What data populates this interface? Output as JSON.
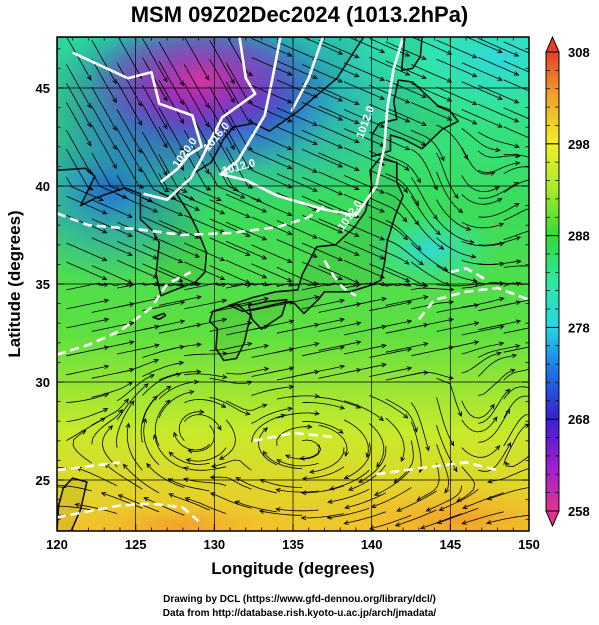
{
  "title": "MSM 09Z02Dec2024 (1013.2hPa)",
  "x_axis": {
    "label": "Longitude (degrees)",
    "ticks": [
      "120",
      "125",
      "130",
      "135",
      "140",
      "145",
      "150"
    ],
    "range": [
      120,
      150
    ]
  },
  "y_axis": {
    "label": "Latitude  (degrees)",
    "ticks": [
      "25",
      "30",
      "35",
      "40",
      "45"
    ],
    "range": [
      22.4,
      47.6
    ]
  },
  "colorbar": {
    "ticks": [
      "308",
      "298",
      "288",
      "278",
      "268",
      "258"
    ],
    "range": [
      258,
      308
    ],
    "colors": [
      "#e0338f",
      "#9b1fd0",
      "#3a1fd0",
      "#1e6fe6",
      "#28d4e6",
      "#2ee8a0",
      "#36d83a",
      "#a6ec2a",
      "#f2ee2a",
      "#f2a62a",
      "#e6402a"
    ]
  },
  "contour_labels": [
    {
      "text": "1020.0",
      "lon": 128.3,
      "lat": 41.6,
      "angle": -55
    },
    {
      "text": "1016.0",
      "lon": 130.3,
      "lat": 42.4,
      "angle": -50
    },
    {
      "text": "1012.0",
      "lon": 131.6,
      "lat": 40.8,
      "angle": -15
    },
    {
      "text": "1012.0",
      "lon": 139.8,
      "lat": 43.2,
      "angle": -70
    },
    {
      "text": "1012.0",
      "lon": 138.8,
      "lat": 38.4,
      "angle": -55
    }
  ],
  "contours": [
    [
      [
        121.0,
        46.8
      ],
      [
        124.5,
        45.5
      ],
      [
        126.0,
        45.8
      ],
      [
        126.5,
        44.2
      ],
      [
        128.6,
        43.6
      ],
      [
        129.2,
        42.0
      ],
      [
        128.4,
        41.6
      ],
      [
        127.7,
        40.9
      ],
      [
        126.6,
        40.2
      ]
    ],
    [
      [
        131.6,
        47.6
      ],
      [
        132.0,
        45.5
      ],
      [
        132.6,
        44.7
      ],
      [
        130.5,
        43.5
      ],
      [
        129.8,
        42.4
      ],
      [
        129.2,
        41.4
      ],
      [
        128.5,
        40.4
      ],
      [
        127.0,
        39.3
      ],
      [
        125.5,
        39.6
      ]
    ],
    [
      [
        134.2,
        47.6
      ],
      [
        133.7,
        45.5
      ],
      [
        133.2,
        43.6
      ],
      [
        131.5,
        41.3
      ],
      [
        130.4,
        40.6
      ],
      [
        132.0,
        40.3
      ],
      [
        134.0,
        39.5
      ],
      [
        137.0,
        38.8
      ],
      [
        139.0,
        38.5
      ],
      [
        140.3,
        40.0
      ],
      [
        140.8,
        42.0
      ],
      [
        141.0,
        44.0
      ],
      [
        141.4,
        46.0
      ],
      [
        142.0,
        47.6
      ]
    ],
    [
      [
        136.9,
        47.6
      ],
      [
        136.0,
        45.5
      ],
      [
        134.9,
        43.8
      ]
    ],
    [
      [
        120.0,
        38.6
      ],
      [
        122.0,
        38.0
      ],
      [
        125.0,
        37.8
      ],
      [
        128.0,
        37.5
      ],
      [
        131.0,
        37.6
      ],
      [
        134.0,
        37.9
      ],
      [
        136.0,
        38.4
      ],
      [
        137.0,
        39.0
      ]
    ],
    [
      [
        137.0,
        36.2
      ],
      [
        137.6,
        35.4
      ],
      [
        138.2,
        34.8
      ],
      [
        139.0,
        34.4
      ]
    ],
    [
      [
        120.0,
        31.4
      ],
      [
        122.0,
        31.9
      ],
      [
        124.0,
        32.6
      ],
      [
        126.0,
        33.8
      ],
      [
        127.0,
        35.0
      ],
      [
        128.5,
        35.6
      ]
    ],
    [
      [
        143.0,
        33.2
      ],
      [
        144.0,
        34.2
      ],
      [
        146.0,
        34.6
      ],
      [
        148.0,
        34.8
      ],
      [
        150.0,
        34.2
      ]
    ],
    [
      [
        145.0,
        35.6
      ],
      [
        146.0,
        35.8
      ],
      [
        147.3,
        35.2
      ]
    ],
    [
      [
        120.0,
        23.1
      ],
      [
        122.0,
        23.4
      ],
      [
        124.0,
        23.7
      ],
      [
        126.0,
        23.8
      ],
      [
        128.0,
        23.6
      ],
      [
        129.0,
        22.9
      ]
    ],
    [
      [
        120.0,
        25.5
      ],
      [
        122.0,
        25.7
      ],
      [
        124.0,
        25.9
      ]
    ],
    [
      [
        140.3,
        25.3
      ],
      [
        143.0,
        25.6
      ],
      [
        146.0,
        25.9
      ],
      [
        148.0,
        25.5
      ]
    ],
    [
      [
        132.5,
        27.0
      ],
      [
        135.0,
        27.4
      ],
      [
        137.5,
        27.2
      ]
    ]
  ],
  "land": [
    [
      [
        129.9,
        33.6
      ],
      [
        131.4,
        34.0
      ],
      [
        132.3,
        33.4
      ],
      [
        131.9,
        32.0
      ],
      [
        131.4,
        31.2
      ],
      [
        130.6,
        31.1
      ],
      [
        130.1,
        31.7
      ],
      [
        130.2,
        32.7
      ],
      [
        129.7,
        33.1
      ]
    ],
    [
      [
        130.9,
        33.9
      ],
      [
        132.4,
        34.3
      ],
      [
        133.9,
        34.6
      ],
      [
        135.3,
        34.7
      ],
      [
        135.6,
        35.5
      ],
      [
        136.5,
        36.9
      ],
      [
        137.7,
        37.0
      ],
      [
        138.9,
        37.9
      ],
      [
        139.6,
        38.7
      ],
      [
        140.0,
        40.0
      ],
      [
        139.9,
        40.8
      ],
      [
        140.5,
        41.4
      ],
      [
        141.6,
        41.2
      ],
      [
        141.6,
        40.2
      ],
      [
        142.0,
        39.5
      ],
      [
        141.5,
        38.5
      ],
      [
        141.0,
        37.2
      ],
      [
        140.8,
        36.0
      ],
      [
        140.6,
        35.2
      ],
      [
        139.8,
        34.9
      ],
      [
        138.6,
        34.6
      ],
      [
        137.0,
        34.6
      ],
      [
        136.6,
        34.2
      ],
      [
        135.7,
        33.5
      ],
      [
        135.1,
        34.0
      ],
      [
        134.6,
        34.1
      ],
      [
        133.0,
        33.8
      ],
      [
        131.8,
        33.6
      ],
      [
        131.0,
        33.9
      ]
    ],
    [
      [
        132.2,
        33.9
      ],
      [
        133.3,
        34.1
      ],
      [
        134.6,
        34.2
      ],
      [
        134.3,
        33.4
      ],
      [
        133.0,
        32.7
      ],
      [
        132.4,
        33.2
      ]
    ],
    [
      [
        140.0,
        41.5
      ],
      [
        141.2,
        41.8
      ],
      [
        141.2,
        42.6
      ],
      [
        142.0,
        42.4
      ],
      [
        143.2,
        41.9
      ],
      [
        144.5,
        42.9
      ],
      [
        145.5,
        43.3
      ],
      [
        144.9,
        43.9
      ],
      [
        144.2,
        44.1
      ],
      [
        142.6,
        45.3
      ],
      [
        141.7,
        45.4
      ],
      [
        141.4,
        44.3
      ],
      [
        141.6,
        43.4
      ],
      [
        140.5,
        43.2
      ],
      [
        140.0,
        42.6
      ]
    ],
    [
      [
        141.9,
        45.9
      ],
      [
        142.1,
        47.6
      ],
      [
        143.2,
        47.6
      ],
      [
        143.1,
        46.6
      ],
      [
        142.6,
        46.0
      ]
    ],
    [
      [
        126.6,
        34.4
      ],
      [
        127.5,
        34.7
      ],
      [
        128.8,
        35.1
      ],
      [
        129.4,
        35.6
      ],
      [
        129.5,
        36.6
      ],
      [
        128.9,
        37.8
      ],
      [
        128.4,
        38.6
      ],
      [
        127.6,
        39.6
      ],
      [
        128.6,
        40.6
      ],
      [
        129.8,
        41.2
      ],
      [
        130.6,
        42.4
      ],
      [
        131.2,
        43.0
      ],
      [
        132.5,
        43.2
      ],
      [
        133.5,
        42.8
      ],
      [
        135.3,
        43.8
      ],
      [
        137.8,
        45.5
      ],
      [
        139.0,
        47.0
      ],
      [
        139.5,
        47.6
      ],
      [
        120.0,
        47.6
      ],
      [
        120.0,
        40.8
      ],
      [
        121.8,
        40.9
      ],
      [
        122.4,
        40.5
      ],
      [
        121.5,
        39.0
      ],
      [
        122.5,
        39.4
      ],
      [
        124.3,
        39.9
      ],
      [
        125.3,
        39.6
      ],
      [
        125.3,
        38.3
      ],
      [
        126.1,
        37.7
      ],
      [
        126.5,
        37.1
      ],
      [
        126.3,
        35.5
      ]
    ],
    [
      [
        121.0,
        25.1
      ],
      [
        121.9,
        24.9
      ],
      [
        121.5,
        23.5
      ],
      [
        120.9,
        22.4
      ],
      [
        120.0,
        22.4
      ],
      [
        120.1,
        23.7
      ],
      [
        120.4,
        24.6
      ]
    ],
    [
      [
        126.8,
        33.5
      ],
      [
        126.1,
        33.3
      ],
      [
        126.5,
        33.2
      ],
      [
        126.9,
        33.4
      ]
    ]
  ],
  "ticks_print": {
    "ylabel_short": "Latitude  (degrees)"
  },
  "footer_line1": "Drawing by DCL (https://www.gfd-dennou.org/library/dcl/)",
  "footer_line2": "Data from http://database.rish.kyoto-u.ac.jp/arch/jmadata/"
}
